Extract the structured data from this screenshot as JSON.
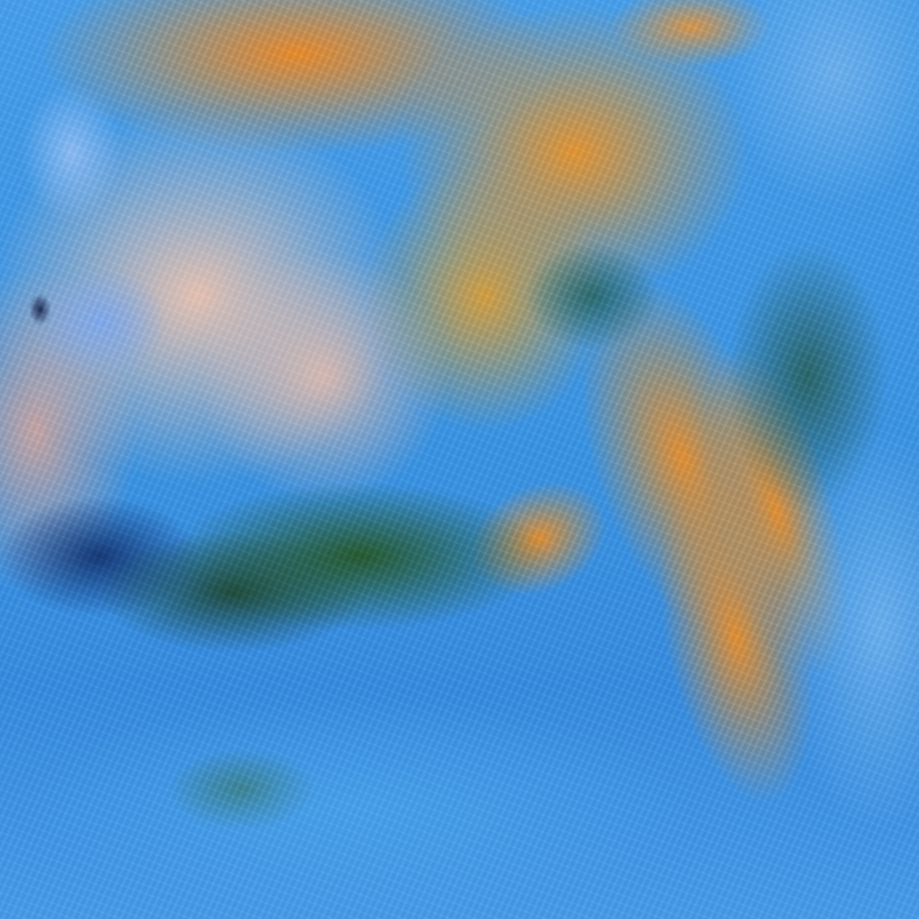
{
  "image": {
    "kind": "false-color satellite cloud imagery",
    "colors": {
      "cloud_orange": "#e8912d",
      "cloud_pink": "#ecc4b0",
      "sky_blue": "#3d95e0",
      "dark_green": "#285a28"
    }
  }
}
